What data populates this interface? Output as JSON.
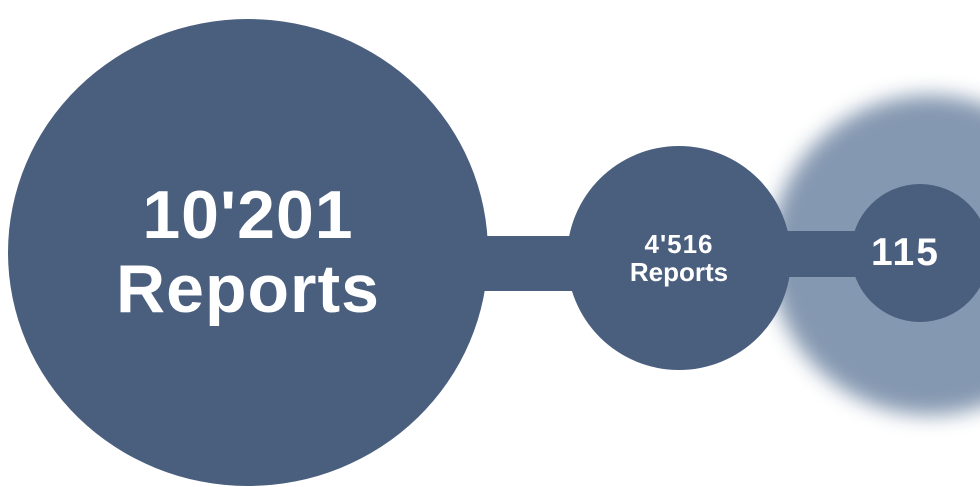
{
  "colors": {
    "node": "#4a5e7e",
    "glow": "#7f93ad"
  },
  "nodes": [
    {
      "id": "node-1",
      "value": "10'201",
      "unit": "Reports"
    },
    {
      "id": "node-2",
      "value": "4'516",
      "unit": "Reports"
    },
    {
      "id": "node-3",
      "value": "115",
      "unit": ""
    }
  ]
}
